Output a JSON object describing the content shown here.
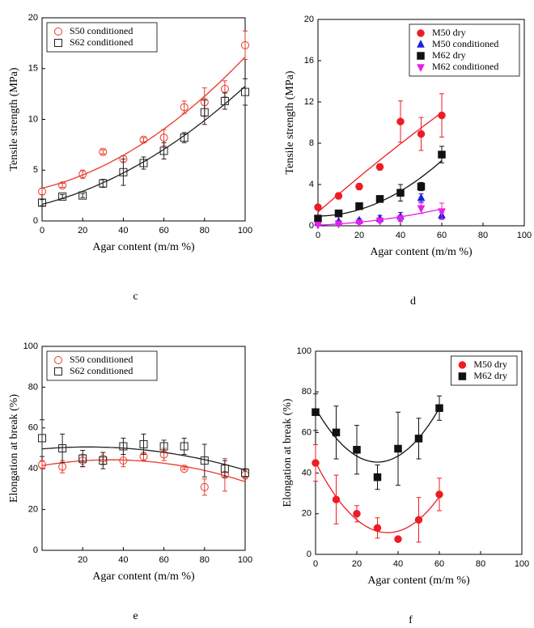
{
  "chart_data": [
    {
      "type": "scatter",
      "panel_label": "c",
      "xlabel": "Agar content (m/m %)",
      "ylabel": "Tensile strength (MPa)",
      "x": [
        0,
        10,
        20,
        30,
        40,
        50,
        60,
        70,
        80,
        90,
        100
      ],
      "xlim": [
        0,
        100
      ],
      "ylim": [
        0,
        20
      ],
      "xticks": [
        0,
        20,
        40,
        60,
        80,
        100
      ],
      "yticks": [
        0,
        5,
        10,
        15,
        20
      ],
      "legend": "upper left",
      "series": [
        {
          "name": "S50 conditioned",
          "color": "#e8392b",
          "marker": "circle-open",
          "fit": true,
          "values": [
            2.9,
            3.5,
            4.6,
            6.8,
            6.1,
            8.0,
            8.2,
            11.2,
            11.7,
            13.0,
            17.3
          ],
          "errors": [
            0.3,
            0.2,
            0.4,
            0.2,
            0.3,
            0.2,
            0.8,
            0.6,
            1.4,
            0.8,
            1.4
          ]
        },
        {
          "name": "S62 conditioned",
          "color": "#222222",
          "marker": "square-open",
          "fit": true,
          "values": [
            1.8,
            2.4,
            2.5,
            3.7,
            4.8,
            5.7,
            6.9,
            8.2,
            10.7,
            11.8,
            12.7
          ],
          "errors": [
            0.3,
            0.2,
            0.2,
            0.4,
            1.3,
            0.6,
            0.8,
            0.5,
            1.2,
            0.8,
            1.3
          ]
        }
      ]
    },
    {
      "type": "scatter",
      "panel_label": "d",
      "xlabel": "Agar content (m/m %)",
      "ylabel": "Tensile strength (MPa)",
      "x": [
        0,
        10,
        20,
        30,
        40,
        50,
        60
      ],
      "xlim": [
        0,
        100
      ],
      "ylim": [
        0,
        20
      ],
      "xticks": [
        0,
        20,
        40,
        60,
        80,
        100
      ],
      "yticks": [
        0,
        4,
        8,
        12,
        16,
        20
      ],
      "legend": "upper right",
      "series": [
        {
          "name": "M50 dry",
          "color": "#ee1c24",
          "marker": "circle",
          "fit": true,
          "values": [
            1.8,
            2.9,
            3.8,
            5.7,
            10.1,
            8.9,
            10.7
          ],
          "errors": [
            0.2,
            0.3,
            0.3,
            0.3,
            2.0,
            1.6,
            2.1
          ]
        },
        {
          "name": "M50 conditioned",
          "color": "#1f1fe0",
          "marker": "triangle",
          "fit": false,
          "values": [
            0.3,
            0.4,
            0.5,
            0.7,
            0.9,
            2.7,
            1.0
          ],
          "errors": [
            0.1,
            0.1,
            0.2,
            0.3,
            0.4,
            0.4,
            0.3
          ]
        },
        {
          "name": "M62 dry",
          "color": "#111111",
          "marker": "square",
          "fit": true,
          "values": [
            0.7,
            1.2,
            1.9,
            2.6,
            3.2,
            3.8,
            6.9
          ],
          "errors": [
            0.2,
            0.2,
            0.2,
            0.2,
            0.8,
            0.4,
            0.8
          ]
        },
        {
          "name": "M62 conditioned",
          "color": "#e81ee8",
          "marker": "triangle-down",
          "fit": true,
          "values": [
            0.1,
            0.2,
            0.3,
            0.5,
            0.7,
            1.7,
            1.4
          ],
          "errors": [
            0.1,
            0.1,
            0.1,
            0.2,
            0.3,
            0.5,
            0.8
          ]
        }
      ]
    },
    {
      "type": "scatter",
      "panel_label": "e",
      "xlabel": "Agar content (m/m %)",
      "ylabel": "Elongation at break (%)",
      "x": [
        0,
        10,
        20,
        30,
        40,
        50,
        60,
        70,
        80,
        90,
        100
      ],
      "xlim": [
        0,
        100
      ],
      "ylim": [
        0,
        100
      ],
      "xticks": [
        20,
        40,
        60,
        80,
        100
      ],
      "yticks": [
        0,
        20,
        40,
        60,
        80,
        100
      ],
      "legend": "upper left",
      "series": [
        {
          "name": "S50 conditioned",
          "color": "#e8392b",
          "marker": "circle-open",
          "fit": true,
          "values": [
            42,
            41,
            44,
            45,
            44,
            46,
            47,
            40,
            31,
            37,
            37
          ],
          "errors": [
            2,
            3,
            3,
            3,
            3,
            2,
            3,
            0.5,
            4,
            8,
            2
          ]
        },
        {
          "name": "S62 conditioned",
          "color": "#222222",
          "marker": "square-open",
          "fit": true,
          "values": [
            55,
            50,
            45,
            44,
            51,
            52,
            51,
            51,
            44,
            40,
            38
          ],
          "errors": [
            9,
            7,
            4,
            4,
            4,
            5,
            3,
            4,
            8,
            4,
            2
          ]
        }
      ]
    },
    {
      "type": "scatter",
      "panel_label": "f",
      "xlabel": "Agar content (m/m %)",
      "ylabel": "Elongation at break (%)",
      "x": [
        0,
        10,
        20,
        30,
        40,
        50,
        60
      ],
      "xlim": [
        0,
        100
      ],
      "ylim": [
        0,
        100
      ],
      "xticks": [
        0,
        20,
        40,
        60,
        80,
        100
      ],
      "yticks": [
        0,
        20,
        40,
        60,
        80,
        100
      ],
      "legend": "upper right",
      "series": [
        {
          "name": "M50 dry",
          "color": "#ee1c24",
          "marker": "circle",
          "fit": true,
          "values": [
            45,
            27,
            20,
            13,
            7.5,
            17,
            29.5
          ],
          "errors": [
            9,
            12,
            4,
            5,
            1,
            11,
            8
          ]
        },
        {
          "name": "M62 dry",
          "color": "#111111",
          "marker": "square",
          "fit": true,
          "values": [
            70,
            60,
            51.5,
            38,
            52,
            57,
            72
          ],
          "errors": [
            9,
            13,
            12,
            6,
            18,
            10,
            6
          ]
        }
      ]
    }
  ]
}
